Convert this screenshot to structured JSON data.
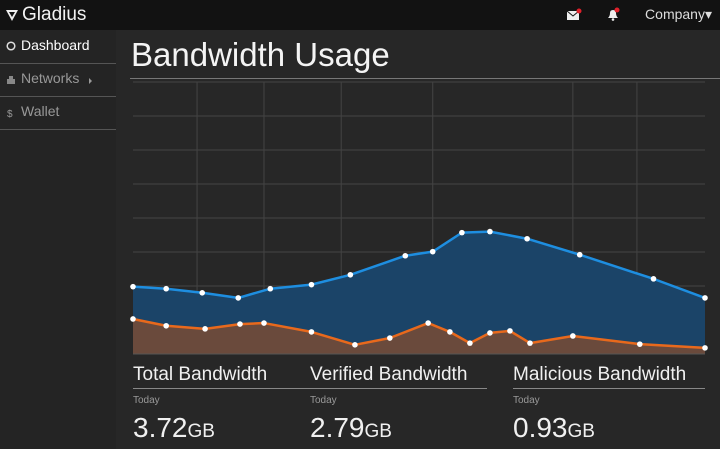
{
  "top_bar": {
    "brand": "Gladius",
    "account": "Company"
  },
  "sidebar": {
    "items": [
      "Dashboard",
      "Networks",
      "Wallet"
    ]
  },
  "chart_data": {
    "type": "area",
    "title": "Bandwidth Usage",
    "xlim": [
      0,
      100
    ],
    "xticks": [
      11.2,
      22.9,
      36.4,
      52.4,
      76.9,
      88.1
    ],
    "ylim": [
      0,
      8
    ],
    "yticks": [
      1,
      2,
      3,
      4,
      5,
      6,
      7,
      8
    ],
    "grid": true,
    "series": [
      {
        "color": "#1e8ee0",
        "fill": "#1b4468",
        "x": [
          0,
          5.8,
          12.1,
          18.4,
          24.0,
          31.2,
          38.0,
          47.6,
          52.4,
          57.5,
          62.4,
          68.9,
          78.1,
          91.0,
          100
        ],
        "values": [
          1.98,
          1.92,
          1.8,
          1.65,
          1.92,
          2.04,
          2.33,
          2.89,
          3.01,
          3.57,
          3.6,
          3.39,
          2.92,
          2.21,
          1.65
        ]
      },
      {
        "color": "#e8691c",
        "fill": "#6a4a3c",
        "x": [
          0,
          5.8,
          12.6,
          18.7,
          22.9,
          31.2,
          38.8,
          44.9,
          51.6,
          55.4,
          58.9,
          62.4,
          65.9,
          69.4,
          76.9,
          88.6,
          100
        ],
        "values": [
          1.03,
          0.83,
          0.74,
          0.88,
          0.91,
          0.65,
          0.27,
          0.47,
          0.91,
          0.65,
          0.32,
          0.62,
          0.68,
          0.32,
          0.53,
          0.29,
          0.18
        ]
      }
    ]
  },
  "stats": [
    {
      "label": "Total Bandwidth",
      "period": "Today",
      "value": 3.72,
      "unit": "GB"
    },
    {
      "label": "Verified Bandwidth",
      "period": "Today",
      "value": 2.79,
      "unit": "GB"
    },
    {
      "label": "Malicious Bandwidth",
      "period": "Today",
      "value": 0.93,
      "unit": "GB"
    }
  ]
}
